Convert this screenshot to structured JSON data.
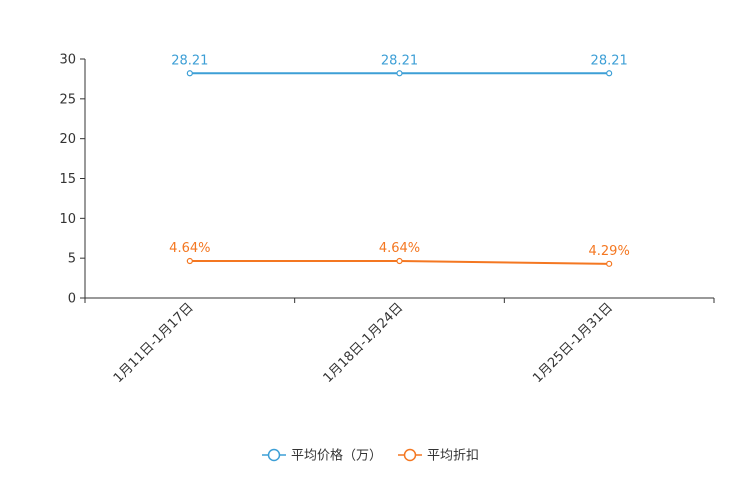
{
  "chart_data": {
    "type": "line",
    "title": "",
    "xlabel": "",
    "ylabel": "",
    "categories": [
      "1月11日-1月17日",
      "1月18日-1月24日",
      "1月25日-1月31日"
    ],
    "ylim": [
      0,
      30
    ],
    "yticks": [
      0,
      5,
      10,
      15,
      20,
      25,
      30
    ],
    "grid": false,
    "legend_position": "bottom-center",
    "series": [
      {
        "name": "平均价格（万）",
        "values": [
          28.21,
          28.21,
          28.21
        ],
        "labels": [
          "28.21",
          "28.21",
          "28.21"
        ],
        "color": "#3d9fd6"
      },
      {
        "name": "平均折扣",
        "values": [
          4.64,
          4.64,
          4.29
        ],
        "labels": [
          "4.64%",
          "4.64%",
          "4.29%"
        ],
        "color": "#f47721"
      }
    ]
  },
  "colors": {
    "axis": "#333333",
    "background": "#ffffff"
  }
}
